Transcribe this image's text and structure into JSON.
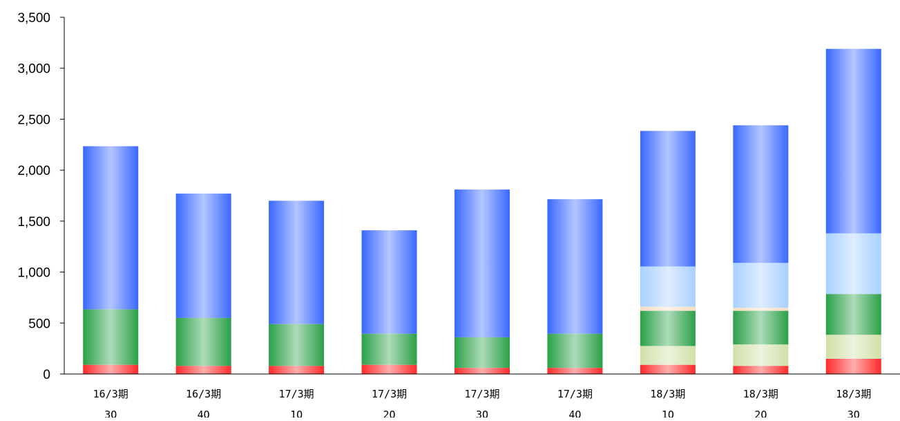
{
  "chart_data": {
    "type": "bar",
    "stacked": true,
    "title": "",
    "xlabel": "",
    "ylabel": "",
    "ylim": [
      0,
      3500
    ],
    "yticks": [
      0,
      500,
      1000,
      1500,
      2000,
      2500,
      3000,
      3500
    ],
    "ytick_labels": [
      "0",
      "500",
      "1,000",
      "1,500",
      "2,000",
      "2,500",
      "3,000",
      "3,500"
    ],
    "grid": false,
    "legend": "none",
    "categories": [
      [
        "16/3期",
        "3Q"
      ],
      [
        "16/3期",
        "4Q"
      ],
      [
        "17/3期",
        "1Q"
      ],
      [
        "17/3期",
        "2Q"
      ],
      [
        "17/3期",
        "3Q"
      ],
      [
        "17/3期",
        "4Q"
      ],
      [
        "18/3期",
        "1Q"
      ],
      [
        "18/3期",
        "2Q"
      ],
      [
        "18/3期",
        "3Q"
      ]
    ],
    "series": [
      {
        "color": "#ff2a2a",
        "values": [
          90,
          80,
          80,
          90,
          60,
          60,
          90,
          80,
          150
        ]
      },
      {
        "color": "#d0e0a8",
        "values": [
          0,
          0,
          0,
          0,
          0,
          0,
          185,
          210,
          235
        ]
      },
      {
        "color": "#2aa048",
        "values": [
          545,
          470,
          410,
          305,
          300,
          335,
          345,
          330,
          400
        ]
      },
      {
        "color": "#f8dcc0",
        "values": [
          0,
          0,
          0,
          0,
          0,
          0,
          40,
          30,
          0
        ]
      },
      {
        "color": "#a8d0ff",
        "values": [
          0,
          0,
          0,
          0,
          0,
          0,
          395,
          440,
          595
        ]
      },
      {
        "color": "#3a68ff",
        "values": [
          1600,
          1220,
          1210,
          1015,
          1450,
          1320,
          1330,
          1350,
          1810
        ]
      }
    ]
  }
}
